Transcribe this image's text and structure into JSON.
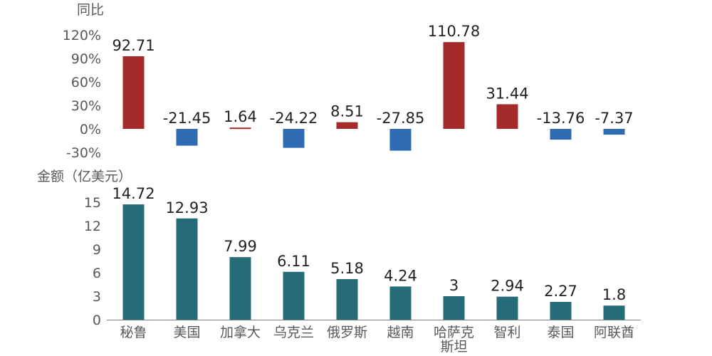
{
  "chart_data": [
    {
      "type": "bar",
      "ylabel": "同比",
      "unit": "%",
      "ylim": [
        -30,
        120
      ],
      "yticks": [
        120,
        90,
        60,
        30,
        0,
        -30
      ],
      "ytick_labels": [
        "120%",
        "90%",
        "60%",
        "30%",
        "0%",
        "-30%"
      ],
      "categories": [
        "秘鲁",
        "美国",
        "加拿大",
        "乌克兰",
        "俄罗斯",
        "越南",
        "哈萨克斯坦",
        "智利",
        "泰国",
        "阿联酋"
      ],
      "values": [
        92.71,
        -21.45,
        1.64,
        -24.22,
        8.51,
        -27.85,
        110.78,
        31.44,
        -13.76,
        -7.37
      ],
      "value_labels": [
        "92.71",
        "-21.45",
        "1.64",
        "-24.22",
        "8.51",
        "-27.85",
        "110.78",
        "31.44",
        "-13.76",
        "-7.37"
      ],
      "colors": {
        "positive": "#A52A2A",
        "negative": "#2E6BB3"
      }
    },
    {
      "type": "bar",
      "ylabel": "金额（亿美元）",
      "ylim": [
        0,
        15
      ],
      "yticks": [
        15,
        12,
        9,
        6,
        3,
        0
      ],
      "ytick_labels": [
        "15",
        "12",
        "9",
        "6",
        "3",
        "0"
      ],
      "categories": [
        "秘鲁",
        "美国",
        "加拿大",
        "乌克兰",
        "俄罗斯",
        "越南",
        "哈萨克斯坦",
        "智利",
        "泰国",
        "阿联酋"
      ],
      "category_lines": [
        [
          "秘鲁"
        ],
        [
          "美国"
        ],
        [
          "加拿大"
        ],
        [
          "乌克兰"
        ],
        [
          "俄罗斯"
        ],
        [
          "越南"
        ],
        [
          "哈萨克",
          "斯坦"
        ],
        [
          "智利"
        ],
        [
          "泰国"
        ],
        [
          "阿联酋"
        ]
      ],
      "values": [
        14.72,
        12.93,
        7.99,
        6.11,
        5.18,
        4.24,
        3,
        2.94,
        2.27,
        1.8
      ],
      "value_labels": [
        "14.72",
        "12.93",
        "7.99",
        "6.11",
        "5.18",
        "4.24",
        "3",
        "2.94",
        "2.27",
        "1.8"
      ],
      "colors": {
        "bar": "#266B78",
        "axis": "#7F7F7F"
      }
    }
  ]
}
